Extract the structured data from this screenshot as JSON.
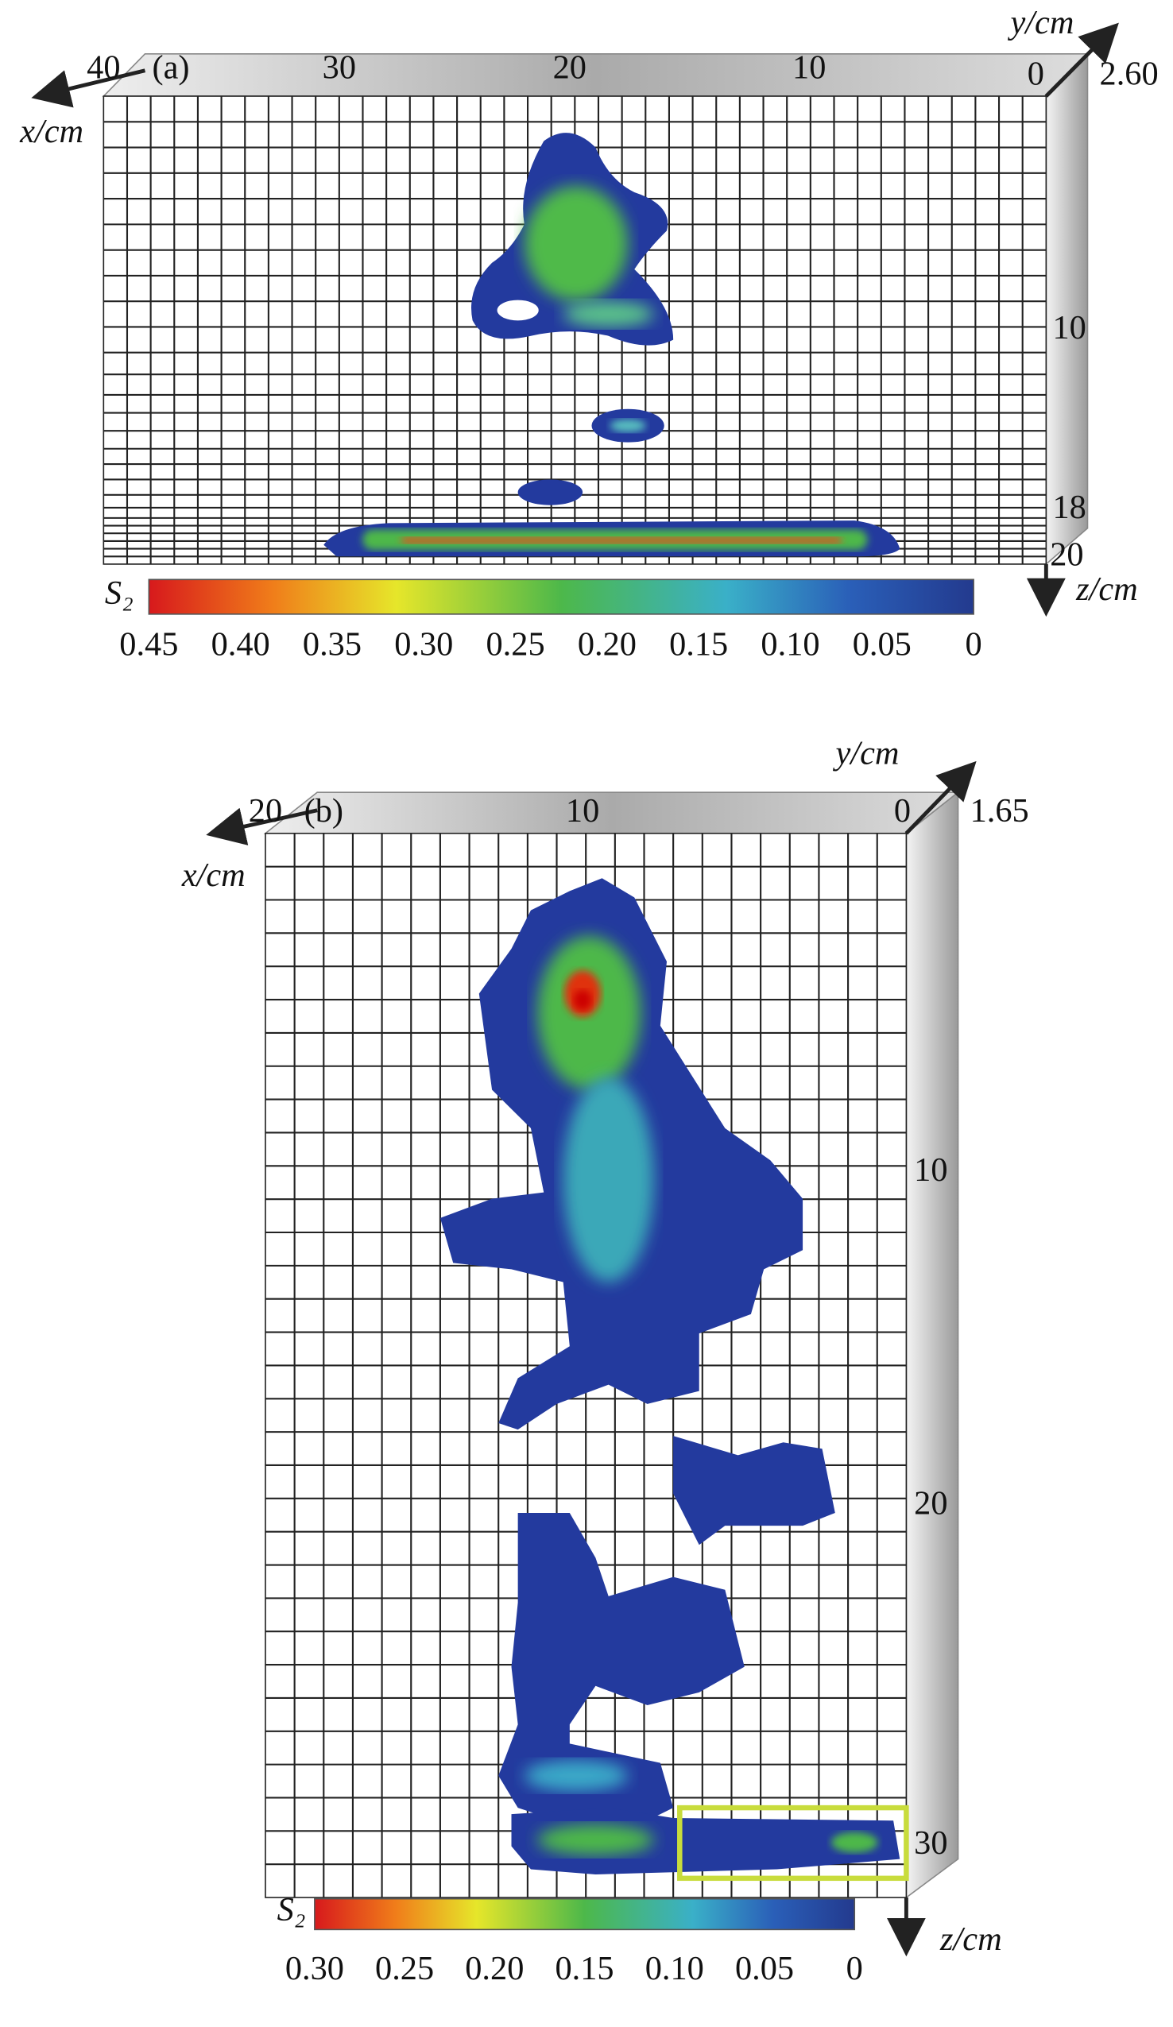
{
  "panels": [
    {
      "label": "(a)",
      "x_axis_label": "x/cm",
      "y_axis_label": "y/cm",
      "z_axis_label": "z/cm",
      "y_ticks": [
        "40",
        "30",
        "20",
        "10",
        "0"
      ],
      "depth_label": "2.60",
      "z_ticks": [
        "10",
        "18",
        "20"
      ],
      "colorbar": {
        "label": "S₂",
        "ticks": [
          "0.45",
          "0.40",
          "0.35",
          "0.30",
          "0.25",
          "0.20",
          "0.15",
          "0.10",
          "0.05",
          "0"
        ]
      }
    },
    {
      "label": "(b)",
      "x_axis_label": "x/cm",
      "y_axis_label": "y/cm",
      "z_axis_label": "z/cm",
      "y_ticks": [
        "20",
        "10",
        "0"
      ],
      "depth_label": "1.65",
      "z_ticks": [
        "10",
        "20",
        "30"
      ],
      "colorbar": {
        "label": "S₂",
        "ticks": [
          "0.30",
          "0.25",
          "0.20",
          "0.15",
          "0.10",
          "0.05",
          "0"
        ]
      }
    }
  ]
}
